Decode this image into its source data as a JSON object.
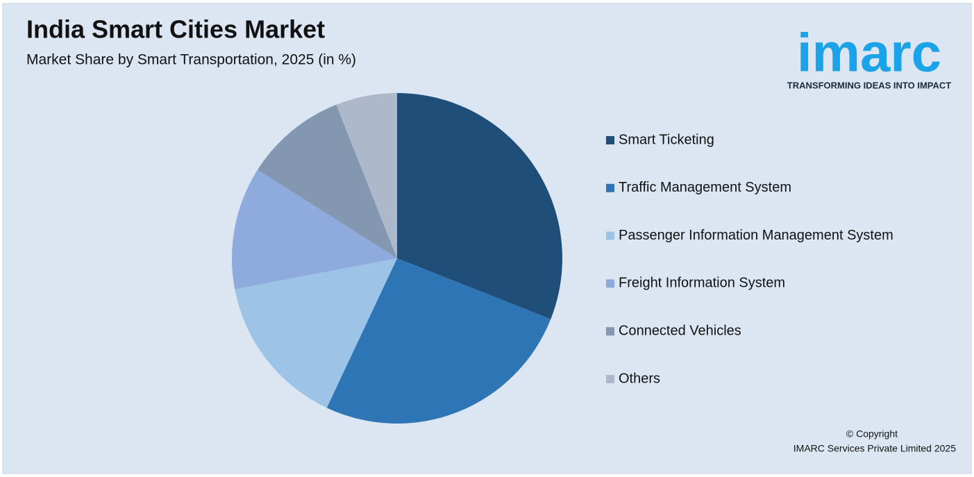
{
  "chart_data": {
    "type": "pie",
    "title": "India Smart Cities Market",
    "subtitle": "Market Share by Smart Transportation, 2025 (in %)",
    "categories": [
      "Smart Ticketing",
      "Traffic Management System",
      "Passenger Information Management System",
      "Freight Information System",
      "Connected Vehicles",
      "Others"
    ],
    "values": [
      31,
      26,
      15,
      12,
      10,
      6
    ],
    "colors": [
      "#1f4e79",
      "#2e75b6",
      "#9dc3e6",
      "#8faadc",
      "#8497b0",
      "#adb9ca"
    ],
    "legend": "right"
  },
  "logo": {
    "name": "imarc",
    "tagline": "TRANSFORMING IDEAS INTO IMPACT"
  },
  "copyright": {
    "line1": "© Copyright",
    "line2": "IMARC Services Private Limited 2025"
  }
}
